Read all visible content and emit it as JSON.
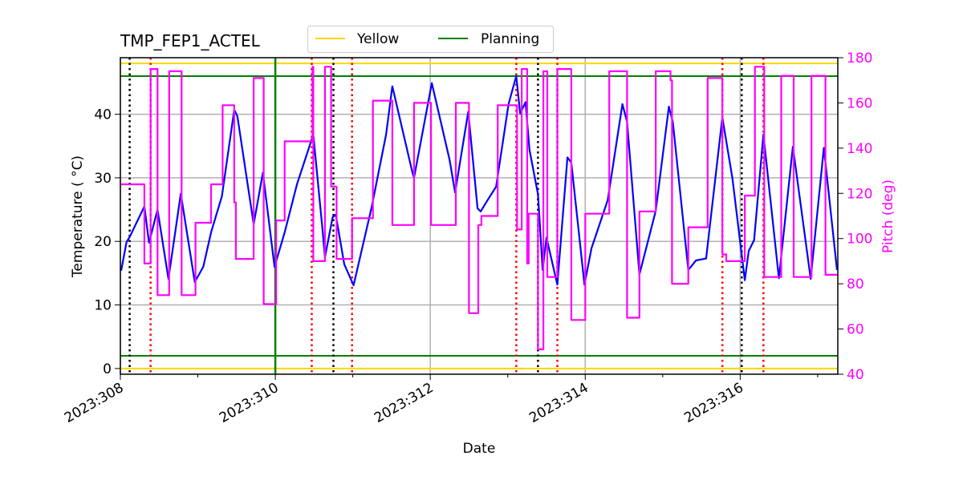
{
  "chart_data": {
    "type": "line",
    "title": "TMP_FEP1_ACTEL",
    "xlabel": "Date",
    "ylabel": "Temperature ($^\\circ$C)",
    "ylabel_display": "Temperature ( °C)",
    "y2label": "Pitch (deg)",
    "xlim": [
      308.0,
      317.26
    ],
    "ylim": [
      -0.9,
      48.9
    ],
    "y2lim": [
      40,
      180
    ],
    "grid": true,
    "legend_placement": "top-center, above plot",
    "x_ticks": [
      308,
      310,
      312,
      314,
      316
    ],
    "x_tick_labels": [
      "2023:308",
      "2023:310",
      "2023:312",
      "2023:314",
      "2023:316"
    ],
    "x_minor_ticks": [
      309,
      311,
      313,
      315,
      317
    ],
    "y_ticks": [
      0,
      10,
      20,
      30,
      40
    ],
    "y_tick_labels": [
      "0",
      "10",
      "20",
      "30",
      "40"
    ],
    "y2_ticks": [
      40,
      60,
      80,
      100,
      120,
      140,
      160,
      180
    ],
    "y2_tick_labels": [
      "40",
      "60",
      "80",
      "100",
      "120",
      "140",
      "160",
      "180"
    ],
    "legend": [
      {
        "name": "Yellow",
        "color": "#ffd700"
      },
      {
        "name": "Planning",
        "color": "#008000"
      }
    ],
    "limits": [
      {
        "name": "Yellow",
        "values": [
          48,
          0
        ],
        "color": "#ffd700"
      },
      {
        "name": "Planning",
        "values": [
          46,
          2
        ],
        "color": "#008000"
      }
    ],
    "vlines": [
      {
        "x": 310.0,
        "color": "#008000",
        "style": "solid"
      },
      {
        "x": 308.12,
        "color": "#000000",
        "style": "dotted"
      },
      {
        "x": 310.75,
        "color": "#000000",
        "style": "dotted"
      },
      {
        "x": 313.39,
        "color": "#000000",
        "style": "dotted"
      },
      {
        "x": 316.02,
        "color": "#000000",
        "style": "dotted"
      },
      {
        "x": 308.39,
        "color": "#ff0000",
        "style": "dotted"
      },
      {
        "x": 310.47,
        "color": "#ff0000",
        "style": "dotted"
      },
      {
        "x": 310.99,
        "color": "#ff0000",
        "style": "dotted"
      },
      {
        "x": 313.11,
        "color": "#ff0000",
        "style": "dotted"
      },
      {
        "x": 313.64,
        "color": "#ff0000",
        "style": "dotted"
      },
      {
        "x": 315.77,
        "color": "#ff0000",
        "style": "dotted"
      },
      {
        "x": 316.3,
        "color": "#ff0000",
        "style": "dotted"
      }
    ],
    "series": [
      {
        "name": "Temperature",
        "axis": "left",
        "color": "#0000ff",
        "points": [
          [
            308.01,
            15.4
          ],
          [
            308.08,
            19.9
          ],
          [
            308.12,
            20.7
          ],
          [
            308.31,
            25.5
          ],
          [
            308.37,
            19.8
          ],
          [
            308.48,
            25.0
          ],
          [
            308.62,
            14.1
          ],
          [
            308.78,
            27.5
          ],
          [
            308.96,
            13.6
          ],
          [
            309.07,
            16.0
          ],
          [
            309.17,
            21.4
          ],
          [
            309.31,
            27.1
          ],
          [
            309.47,
            40.7
          ],
          [
            309.51,
            39.7
          ],
          [
            309.72,
            22.7
          ],
          [
            309.84,
            30.8
          ],
          [
            309.99,
            16.0
          ],
          [
            310.12,
            21.4
          ],
          [
            310.28,
            29.0
          ],
          [
            310.49,
            36.8
          ],
          [
            310.61,
            21.7
          ],
          [
            310.64,
            17.5
          ],
          [
            310.74,
            23.8
          ],
          [
            310.78,
            24.2
          ],
          [
            310.89,
            16.4
          ],
          [
            311.01,
            13.1
          ],
          [
            311.24,
            25.2
          ],
          [
            311.43,
            36.8
          ],
          [
            311.51,
            44.4
          ],
          [
            311.77,
            30.8
          ],
          [
            311.79,
            30.0
          ],
          [
            312.02,
            44.9
          ],
          [
            312.25,
            32.8
          ],
          [
            312.32,
            27.7
          ],
          [
            312.49,
            40.4
          ],
          [
            312.61,
            25.2
          ],
          [
            312.65,
            24.7
          ],
          [
            312.74,
            26.5
          ],
          [
            312.85,
            28.6
          ],
          [
            313.01,
            41.6
          ],
          [
            313.11,
            46.0
          ],
          [
            313.16,
            40.1
          ],
          [
            313.23,
            41.9
          ],
          [
            313.28,
            34.4
          ],
          [
            313.39,
            27.4
          ],
          [
            313.45,
            15.5
          ],
          [
            313.5,
            20.6
          ],
          [
            313.64,
            13.2
          ],
          [
            313.77,
            33.2
          ],
          [
            313.82,
            32.4
          ],
          [
            313.99,
            13.2
          ],
          [
            314.08,
            18.9
          ],
          [
            314.29,
            26.5
          ],
          [
            314.48,
            41.6
          ],
          [
            314.54,
            38.8
          ],
          [
            314.7,
            14.8
          ],
          [
            314.91,
            24.8
          ],
          [
            315.08,
            41.2
          ],
          [
            315.13,
            38.8
          ],
          [
            315.33,
            15.5
          ],
          [
            315.43,
            17.0
          ],
          [
            315.56,
            17.3
          ],
          [
            315.77,
            39.5
          ],
          [
            315.9,
            29.9
          ],
          [
            316.06,
            13.9
          ],
          [
            316.11,
            18.5
          ],
          [
            316.18,
            20.2
          ],
          [
            316.3,
            36.8
          ],
          [
            316.5,
            14.2
          ],
          [
            316.68,
            34.9
          ],
          [
            316.91,
            14.1
          ],
          [
            317.08,
            34.7
          ],
          [
            317.25,
            15.5
          ]
        ]
      },
      {
        "name": "Pitch",
        "axis": "right",
        "color": "#ff00ff",
        "step": true,
        "end": 317.26,
        "points": [
          [
            308.01,
            124
          ],
          [
            308.31,
            89
          ],
          [
            308.39,
            175
          ],
          [
            308.48,
            75
          ],
          [
            308.63,
            174
          ],
          [
            308.79,
            75
          ],
          [
            308.97,
            107
          ],
          [
            309.17,
            124
          ],
          [
            309.32,
            159
          ],
          [
            309.47,
            116
          ],
          [
            309.49,
            91
          ],
          [
            309.72,
            171
          ],
          [
            309.85,
            71
          ],
          [
            310.01,
            108
          ],
          [
            310.12,
            143
          ],
          [
            310.48,
            176
          ],
          [
            310.49,
            90
          ],
          [
            310.64,
            176
          ],
          [
            310.72,
            123
          ],
          [
            310.79,
            91
          ],
          [
            310.99,
            109
          ],
          [
            311.26,
            161
          ],
          [
            311.51,
            106
          ],
          [
            311.79,
            160
          ],
          [
            312.01,
            106
          ],
          [
            312.33,
            160
          ],
          [
            312.5,
            67
          ],
          [
            312.62,
            106
          ],
          [
            312.66,
            110
          ],
          [
            312.87,
            159
          ],
          [
            313.12,
            104
          ],
          [
            313.18,
            175
          ],
          [
            313.25,
            89
          ],
          [
            313.27,
            111
          ],
          [
            313.39,
            51
          ],
          [
            313.46,
            174
          ],
          [
            313.51,
            83
          ],
          [
            313.64,
            175
          ],
          [
            313.82,
            64
          ],
          [
            314.0,
            111
          ],
          [
            314.31,
            174
          ],
          [
            314.54,
            65
          ],
          [
            314.7,
            112
          ],
          [
            314.91,
            174
          ],
          [
            315.1,
            170
          ],
          [
            315.12,
            80
          ],
          [
            315.33,
            105
          ],
          [
            315.58,
            171
          ],
          [
            315.77,
            93
          ],
          [
            315.82,
            90
          ],
          [
            316.06,
            119
          ],
          [
            316.19,
            176
          ],
          [
            316.31,
            83
          ],
          [
            316.53,
            172
          ],
          [
            316.69,
            83
          ],
          [
            316.92,
            172
          ],
          [
            317.1,
            84
          ]
        ]
      }
    ]
  }
}
